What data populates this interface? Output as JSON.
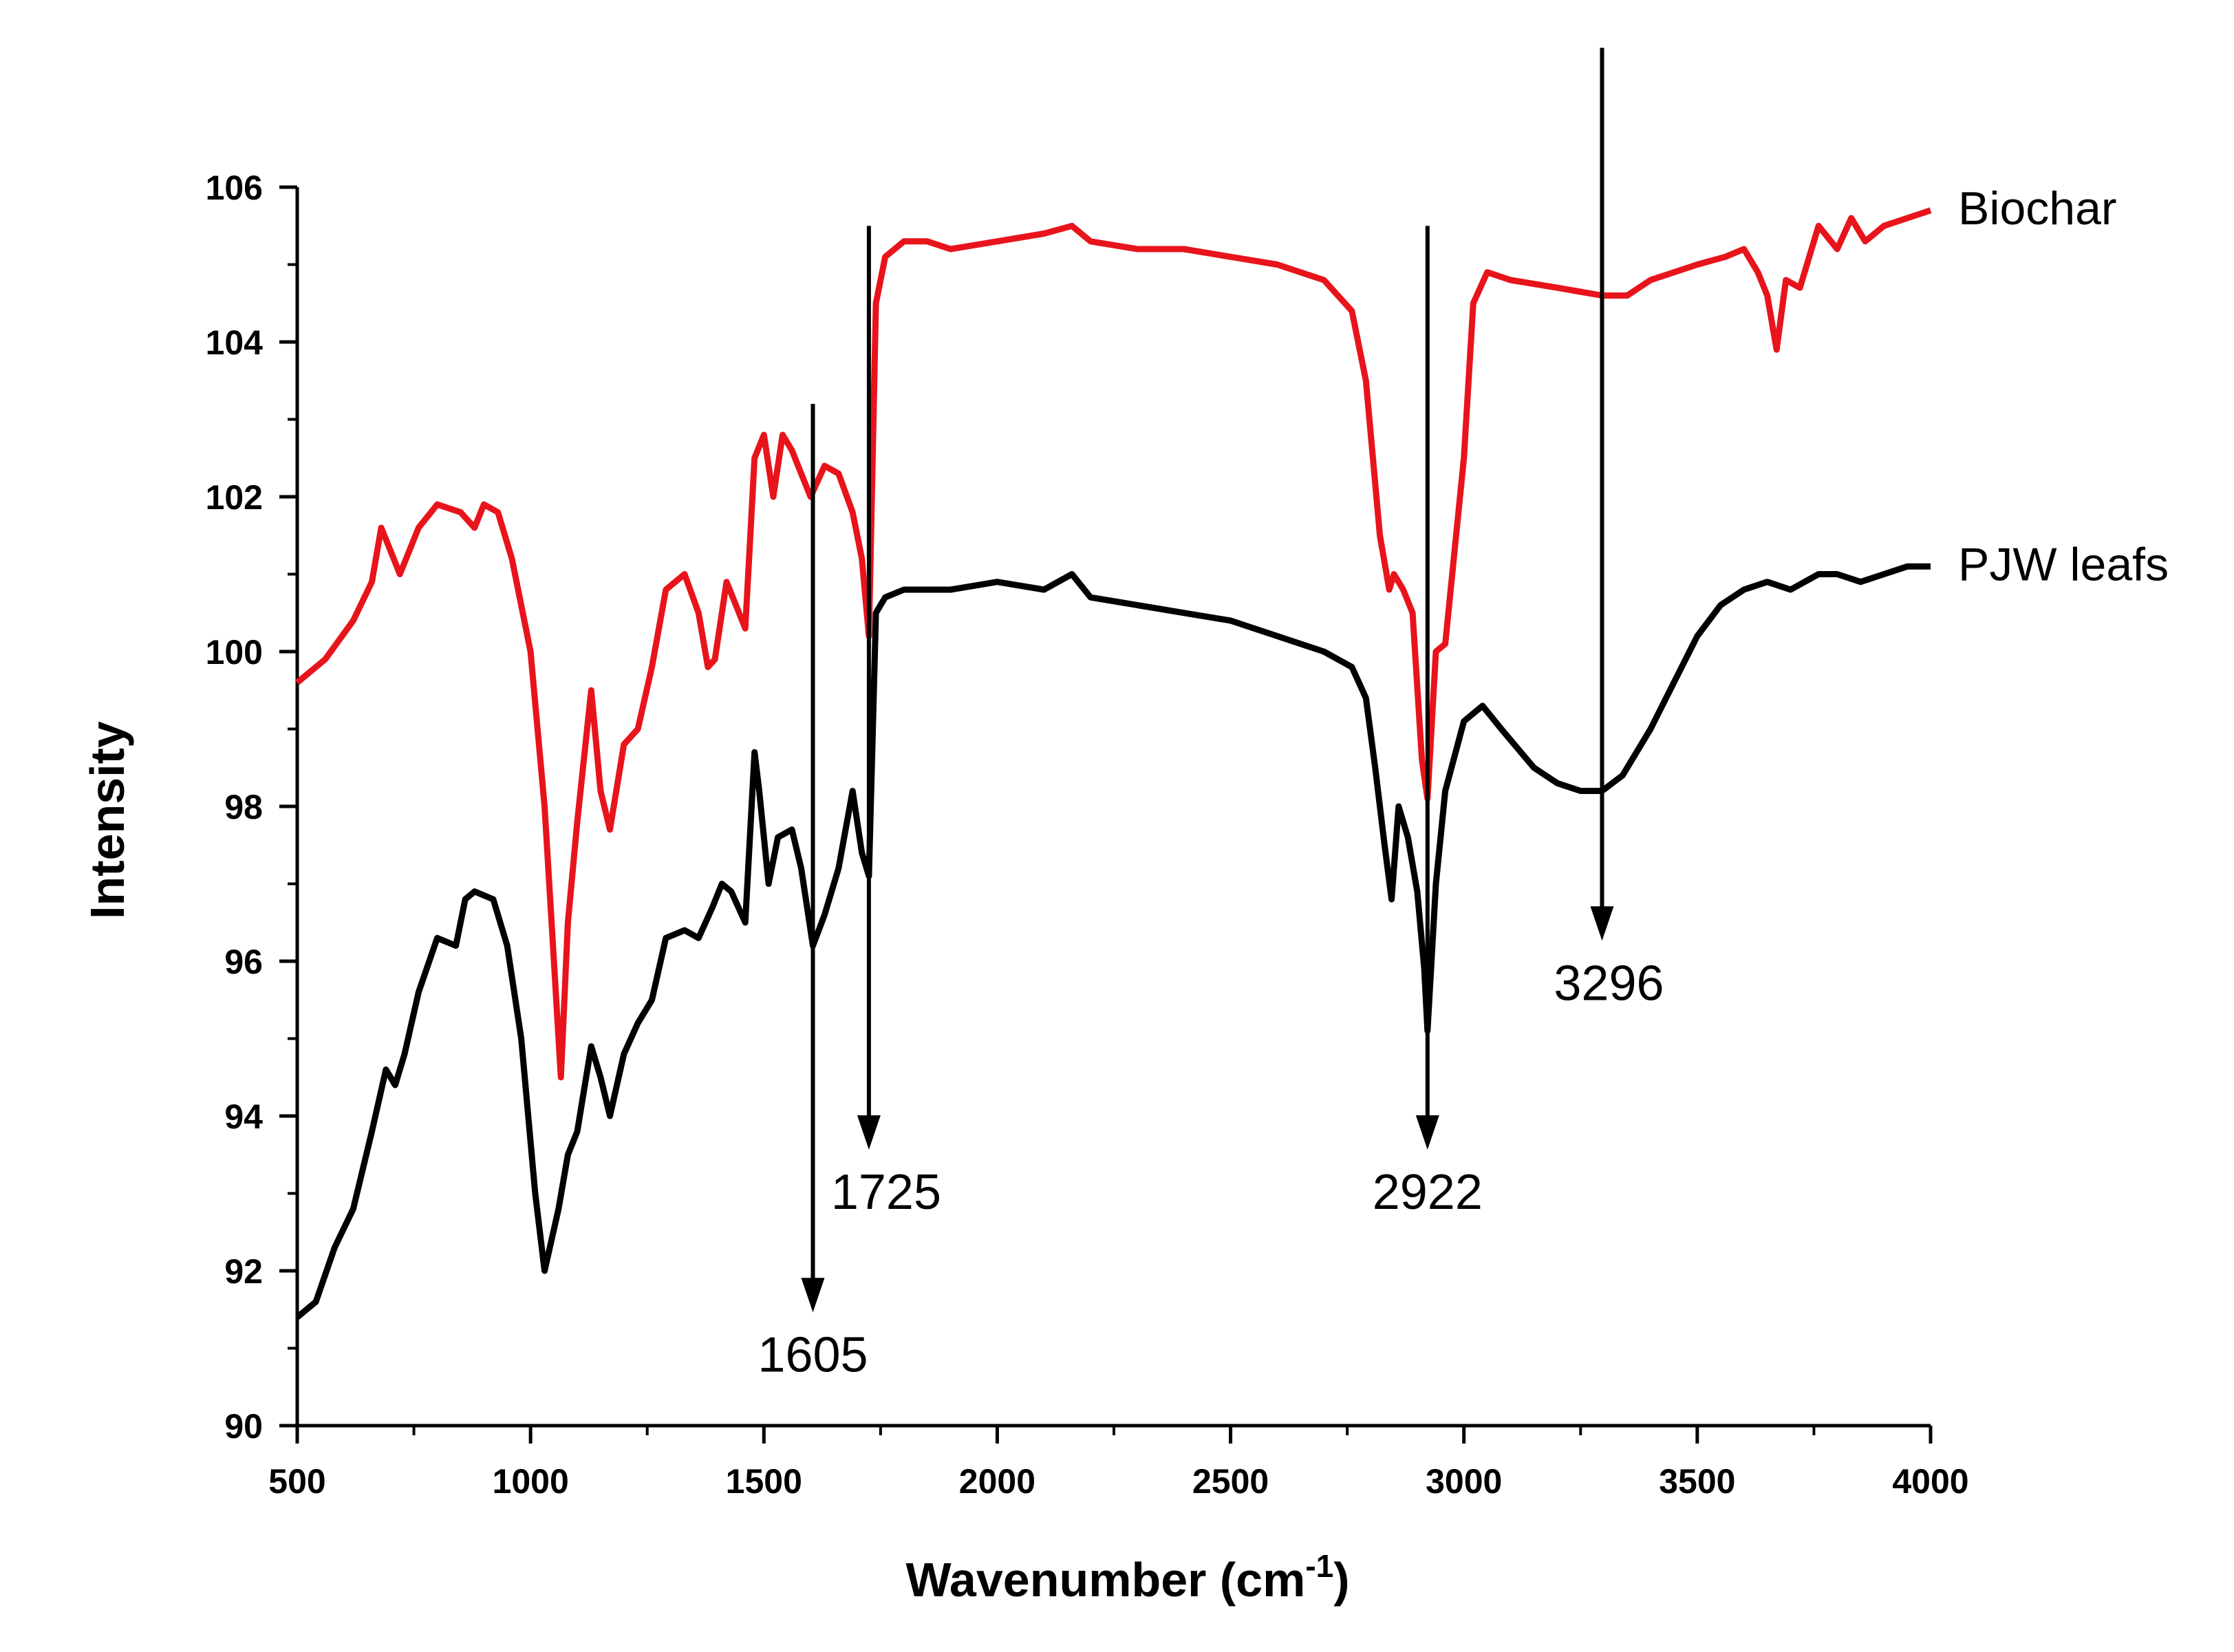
{
  "chart_data": {
    "type": "line",
    "xlabel": "Wavenumber (cm",
    "xlabel_sup": "-1",
    "xlabel_close": ")",
    "ylabel": "Intensity",
    "xlim": [
      500,
      4000
    ],
    "ylim": [
      90,
      106
    ],
    "xticks": [
      500,
      1000,
      1500,
      2000,
      2500,
      3000,
      3500,
      4000
    ],
    "yticks": [
      90,
      92,
      94,
      96,
      98,
      100,
      102,
      104,
      106
    ],
    "xtick_labels": [
      "500",
      "1000",
      "1500",
      "2000",
      "2500",
      "3000",
      "3500",
      "4000"
    ],
    "ytick_labels": [
      "90",
      "92",
      "94",
      "96",
      "98",
      "100",
      "102",
      "104",
      "106"
    ],
    "grid": false,
    "legend": "labels at right end of each curve",
    "series": [
      {
        "name": "Biochar",
        "color": "#e8141b",
        "x": [
          500,
          560,
          620,
          660,
          680,
          700,
          720,
          760,
          800,
          850,
          880,
          900,
          930,
          960,
          1000,
          1030,
          1050,
          1065,
          1080,
          1100,
          1130,
          1150,
          1170,
          1200,
          1230,
          1260,
          1290,
          1330,
          1360,
          1380,
          1395,
          1420,
          1440,
          1460,
          1480,
          1500,
          1520,
          1540,
          1560,
          1580,
          1600,
          1630,
          1660,
          1690,
          1710,
          1725,
          1740,
          1760,
          1800,
          1850,
          1900,
          2000,
          2100,
          2160,
          2200,
          2300,
          2400,
          2500,
          2600,
          2700,
          2760,
          2790,
          2820,
          2840,
          2850,
          2870,
          2890,
          2910,
          2922,
          2940,
          2960,
          2980,
          3000,
          3020,
          3050,
          3100,
          3200,
          3296,
          3350,
          3400,
          3500,
          3560,
          3600,
          3630,
          3650,
          3670,
          3690,
          3720,
          3760,
          3800,
          3830,
          3860,
          3900,
          3950,
          4000
        ],
        "y": [
          99.6,
          99.9,
          100.4,
          100.9,
          101.6,
          101.3,
          101.0,
          101.6,
          101.9,
          101.8,
          101.6,
          101.9,
          101.8,
          101.2,
          100.0,
          98.0,
          96.0,
          94.5,
          96.5,
          97.8,
          99.5,
          98.2,
          97.7,
          98.8,
          99.0,
          99.8,
          100.8,
          101.0,
          100.5,
          99.8,
          99.9,
          100.9,
          100.6,
          100.3,
          102.5,
          102.8,
          102.0,
          102.8,
          102.6,
          102.3,
          102.0,
          102.4,
          102.3,
          101.8,
          101.2,
          100.2,
          104.5,
          105.1,
          105.3,
          105.3,
          105.2,
          105.3,
          105.4,
          105.5,
          105.3,
          105.2,
          105.2,
          105.1,
          105.0,
          104.8,
          104.4,
          103.5,
          101.5,
          100.8,
          101.0,
          100.8,
          100.5,
          98.6,
          98.1,
          100.0,
          100.1,
          101.3,
          102.5,
          104.5,
          104.9,
          104.8,
          104.7,
          104.6,
          104.6,
          104.8,
          105.0,
          105.1,
          105.2,
          104.9,
          104.6,
          103.9,
          104.8,
          104.7,
          105.5,
          105.2,
          105.6,
          105.3,
          105.5,
          105.6,
          105.7
        ]
      },
      {
        "name": "PJW leafs",
        "color": "#000000",
        "x": [
          500,
          540,
          580,
          620,
          660,
          690,
          710,
          730,
          760,
          800,
          840,
          860,
          880,
          920,
          950,
          980,
          1010,
          1030,
          1060,
          1080,
          1100,
          1130,
          1150,
          1170,
          1200,
          1230,
          1260,
          1290,
          1330,
          1360,
          1390,
          1410,
          1430,
          1460,
          1480,
          1490,
          1510,
          1530,
          1560,
          1580,
          1605,
          1630,
          1660,
          1690,
          1710,
          1725,
          1740,
          1760,
          1800,
          1900,
          2000,
          2100,
          2160,
          2200,
          2300,
          2400,
          2500,
          2600,
          2700,
          2760,
          2790,
          2810,
          2830,
          2845,
          2860,
          2880,
          2900,
          2915,
          2922,
          2940,
          2960,
          3000,
          3040,
          3080,
          3150,
          3200,
          3250,
          3296,
          3340,
          3400,
          3450,
          3500,
          3550,
          3600,
          3650,
          3700,
          3730,
          3760,
          3800,
          3850,
          3900,
          3950,
          4000
        ],
        "y": [
          91.4,
          91.6,
          92.3,
          92.8,
          93.8,
          94.6,
          94.4,
          94.8,
          95.6,
          96.3,
          96.2,
          96.8,
          96.9,
          96.8,
          96.2,
          95.0,
          93.0,
          92.0,
          92.8,
          93.5,
          93.8,
          94.9,
          94.5,
          94.0,
          94.8,
          95.2,
          95.5,
          96.3,
          96.4,
          96.3,
          96.7,
          97.0,
          96.9,
          96.5,
          98.7,
          98.2,
          97.0,
          97.6,
          97.7,
          97.2,
          96.2,
          96.6,
          97.2,
          98.2,
          97.4,
          97.1,
          100.5,
          100.7,
          100.8,
          100.8,
          100.9,
          100.8,
          101.0,
          100.7,
          100.6,
          100.5,
          100.4,
          100.2,
          100.0,
          99.8,
          99.4,
          98.5,
          97.5,
          96.8,
          98.0,
          97.6,
          96.9,
          95.9,
          95.1,
          97.0,
          98.2,
          99.1,
          99.3,
          99.0,
          98.5,
          98.3,
          98.2,
          98.2,
          98.4,
          99.0,
          99.6,
          100.2,
          100.6,
          100.8,
          100.9,
          100.8,
          100.9,
          101.0,
          101.0,
          100.9,
          101.0,
          101.1,
          101.1
        ]
      }
    ],
    "annotations": [
      {
        "label": "1605",
        "x": 1605,
        "y_from": 103.2,
        "y_to": 91.5
      },
      {
        "label": "1725",
        "x": 1725,
        "y_from": 105.5,
        "y_to": 93.6
      },
      {
        "label": "2922",
        "x": 2922,
        "y_from": 105.5,
        "y_to": 93.6
      },
      {
        "label": "3296",
        "x": 3296,
        "y_from": 107.8,
        "y_to": 96.3
      }
    ]
  }
}
